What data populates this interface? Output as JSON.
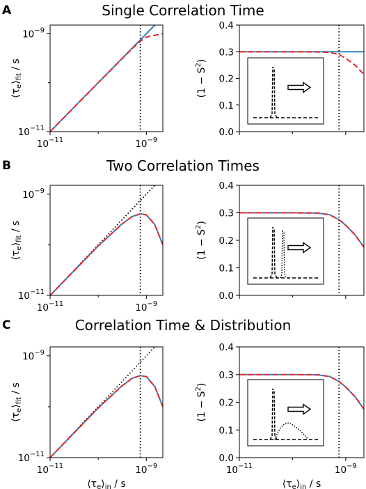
{
  "rows": [
    {
      "letter": "A",
      "title": "Single Correlation Time"
    },
    {
      "letter": "B",
      "title": "Two Correlation Times"
    },
    {
      "letter": "C",
      "title": "Correlation Time & Distribution"
    }
  ],
  "colors": {
    "blue": "#2e86c1",
    "red": "#e8262a",
    "black": "#000000"
  },
  "chart_data": [
    {
      "panel": "A-left",
      "type": "line",
      "ylabel": "⟨τe⟩fit / s",
      "xscale": "log",
      "yscale": "log",
      "xlim": [
        1e-11,
        2.2e-09
      ],
      "ylim": [
        1e-11,
        1.5e-09
      ],
      "xticks": [
        "10⁻¹¹",
        "10⁻⁹"
      ],
      "yticks": [
        "10⁻¹¹",
        "10⁻⁹"
      ],
      "vline": 7.5e-10,
      "series": [
        {
          "style": "dotted-black",
          "x": [
            1e-11,
            2.2e-09
          ],
          "y": [
            1e-11,
            2.2e-09
          ]
        },
        {
          "style": "solid-blue",
          "x": [
            1e-11,
            1e-10,
            1e-09,
            2.2e-09
          ],
          "y": [
            1e-11,
            1e-10,
            1e-09,
            2.2e-09
          ]
        },
        {
          "style": "dashed-red",
          "x": [
            1e-11,
            1e-10,
            5e-10,
            7.5e-10,
            1e-09,
            1.5e-09,
            2.2e-09
          ],
          "y": [
            1e-11,
            1e-10,
            4.9e-10,
            7e-10,
            8.5e-10,
            9.3e-10,
            1e-09
          ]
        }
      ]
    },
    {
      "panel": "A-right",
      "type": "line",
      "ylabel": "(1 − S²)",
      "xscale": "log",
      "xlim": [
        1e-11,
        2.2e-09
      ],
      "ylim": [
        0,
        0.4
      ],
      "yticks": [
        0.0,
        0.1,
        0.2,
        0.3,
        0.4
      ],
      "vline": 7.5e-10,
      "series": [
        {
          "style": "solid-blue",
          "x": [
            1e-11,
            2.2e-09
          ],
          "y": [
            0.3,
            0.3
          ]
        },
        {
          "style": "dashed-red",
          "x": [
            1e-11,
            3e-10,
            5e-10,
            7.5e-10,
            1e-09,
            1.5e-09,
            2.2e-09
          ],
          "y": [
            0.3,
            0.299,
            0.297,
            0.29,
            0.275,
            0.25,
            0.215
          ]
        }
      ],
      "inset": {
        "peaks": [
          "single"
        ]
      }
    },
    {
      "panel": "B-left",
      "type": "line",
      "ylabel": "⟨τe⟩fit / s",
      "xscale": "log",
      "yscale": "log",
      "xlim": [
        1e-11,
        2.2e-09
      ],
      "ylim": [
        1e-11,
        1.5e-09
      ],
      "xticks": [
        "10⁻¹¹",
        "10⁻⁹"
      ],
      "yticks": [
        "10⁻¹¹",
        "10⁻⁹"
      ],
      "vline": 7.5e-10,
      "series": [
        {
          "style": "dotted-black",
          "x": [
            1e-11,
            2.2e-09
          ],
          "y": [
            1e-11,
            2.2e-09
          ]
        },
        {
          "style": "solid-blue",
          "x": [
            1e-11,
            1e-10,
            3e-10,
            5e-10,
            7.5e-10,
            1e-09,
            1.5e-09,
            2.2e-09
          ],
          "y": [
            1e-11,
            9.5e-11,
            2.5e-10,
            3.6e-10,
            4.1e-10,
            3.9e-10,
            2.5e-10,
            1e-10
          ]
        },
        {
          "style": "dashed-red",
          "x": [
            1e-11,
            1e-10,
            3e-10,
            5e-10,
            7.5e-10,
            1e-09,
            1.5e-09,
            2.2e-09
          ],
          "y": [
            1e-11,
            9.5e-11,
            2.5e-10,
            3.6e-10,
            4.1e-10,
            3.9e-10,
            2.5e-10,
            1e-10
          ]
        }
      ]
    },
    {
      "panel": "B-right",
      "type": "line",
      "ylabel": "(1 − S²)",
      "xscale": "log",
      "xlim": [
        1e-11,
        2.2e-09
      ],
      "ylim": [
        0,
        0.4
      ],
      "yticks": [
        0.0,
        0.1,
        0.2,
        0.3,
        0.4
      ],
      "vline": 7.5e-10,
      "series": [
        {
          "style": "solid-blue",
          "x": [
            1e-11,
            1e-10,
            3e-10,
            5e-10,
            7.5e-10,
            1e-09,
            1.5e-09,
            2.2e-09
          ],
          "y": [
            0.3,
            0.3,
            0.299,
            0.293,
            0.275,
            0.255,
            0.22,
            0.175
          ]
        },
        {
          "style": "dashed-red",
          "x": [
            1e-11,
            1e-10,
            3e-10,
            5e-10,
            7.5e-10,
            1e-09,
            1.5e-09,
            2.2e-09
          ],
          "y": [
            0.3,
            0.3,
            0.299,
            0.293,
            0.275,
            0.255,
            0.22,
            0.175
          ]
        }
      ],
      "inset": {
        "peaks": [
          "pair"
        ]
      }
    },
    {
      "panel": "C-left",
      "type": "line",
      "ylabel": "⟨τe⟩fit / s",
      "xlabel": "⟨τe⟩in / s",
      "xscale": "log",
      "yscale": "log",
      "xlim": [
        1e-11,
        2.2e-09
      ],
      "ylim": [
        1e-11,
        1.5e-09
      ],
      "xticks": [
        "10⁻¹¹",
        "10⁻⁹"
      ],
      "yticks": [
        "10⁻¹¹",
        "10⁻⁹"
      ],
      "vline": 7.5e-10,
      "series": [
        {
          "style": "dotted-black",
          "x": [
            1e-11,
            2.2e-09
          ],
          "y": [
            1e-11,
            2.2e-09
          ]
        },
        {
          "style": "solid-blue",
          "x": [
            1e-11,
            1e-10,
            3e-10,
            5e-10,
            7.5e-10,
            1e-09,
            1.5e-09,
            2.2e-09
          ],
          "y": [
            1e-11,
            9.5e-11,
            2.5e-10,
            3.6e-10,
            4.1e-10,
            3.9e-10,
            2.5e-10,
            1e-10
          ]
        },
        {
          "style": "dashed-red",
          "x": [
            1e-11,
            1e-10,
            3e-10,
            5e-10,
            7.5e-10,
            1e-09,
            1.5e-09,
            2.2e-09
          ],
          "y": [
            1e-11,
            9.5e-11,
            2.5e-10,
            3.6e-10,
            4.1e-10,
            3.9e-10,
            2.5e-10,
            1e-10
          ]
        }
      ]
    },
    {
      "panel": "C-right",
      "type": "line",
      "ylabel": "(1 − S²)",
      "xlabel": "⟨τe⟩in / s",
      "xscale": "log",
      "xlim": [
        1e-11,
        2.2e-09
      ],
      "ylim": [
        0,
        0.4
      ],
      "xticks": [
        "10⁻¹¹",
        "10⁻⁹"
      ],
      "yticks": [
        0.0,
        0.1,
        0.2,
        0.3,
        0.4
      ],
      "vline": 7.5e-10,
      "series": [
        {
          "style": "solid-blue",
          "x": [
            1e-11,
            1e-10,
            3e-10,
            5e-10,
            7.5e-10,
            1e-09,
            1.5e-09,
            2.2e-09
          ],
          "y": [
            0.3,
            0.3,
            0.299,
            0.293,
            0.275,
            0.255,
            0.22,
            0.175
          ]
        },
        {
          "style": "dashed-red",
          "x": [
            1e-11,
            1e-10,
            3e-10,
            5e-10,
            7.5e-10,
            1e-09,
            1.5e-09,
            2.2e-09
          ],
          "y": [
            0.3,
            0.3,
            0.299,
            0.293,
            0.275,
            0.255,
            0.22,
            0.175
          ]
        }
      ],
      "inset": {
        "peaks": [
          "broad"
        ]
      }
    }
  ]
}
